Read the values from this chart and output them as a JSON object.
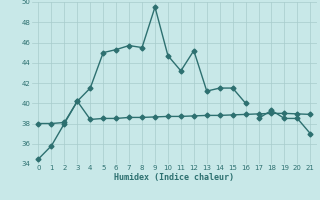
{
  "xlabel": "Humidex (Indice chaleur)",
  "x": [
    0,
    1,
    2,
    3,
    4,
    5,
    6,
    7,
    8,
    9,
    10,
    11,
    12,
    13,
    14,
    15,
    16,
    17,
    18,
    19,
    20,
    21
  ],
  "line_upper": [
    34.5,
    35.8,
    38.0,
    40.2,
    41.5,
    45.0,
    45.3,
    45.7,
    45.5,
    49.5,
    44.7,
    43.2,
    45.2,
    41.2,
    41.5,
    41.5,
    40.0,
    null,
    null,
    null,
    null,
    null
  ],
  "line_lower": [
    38.0,
    38.0,
    38.1,
    40.2,
    38.4,
    38.5,
    38.5,
    38.6,
    38.6,
    38.65,
    38.7,
    38.7,
    38.75,
    38.8,
    38.8,
    38.85,
    38.9,
    38.95,
    39.0,
    39.0,
    38.95,
    38.9
  ],
  "line_right": [
    null,
    null,
    null,
    null,
    null,
    null,
    null,
    null,
    null,
    null,
    null,
    null,
    null,
    null,
    null,
    null,
    null,
    38.5,
    39.3,
    38.5,
    38.5,
    37.0
  ],
  "ylim": [
    34,
    50
  ],
  "xlim_min": -0.5,
  "xlim_max": 21.5,
  "yticks": [
    34,
    36,
    38,
    40,
    42,
    44,
    46,
    48,
    50
  ],
  "xticks": [
    0,
    1,
    2,
    3,
    4,
    5,
    6,
    7,
    8,
    9,
    10,
    11,
    12,
    13,
    14,
    15,
    16,
    17,
    18,
    19,
    20,
    21
  ],
  "line_color": "#2d7070",
  "bg_color": "#c8e8e8",
  "grid_color": "#a8cccc",
  "line_width": 1.0,
  "marker_size": 2.5
}
